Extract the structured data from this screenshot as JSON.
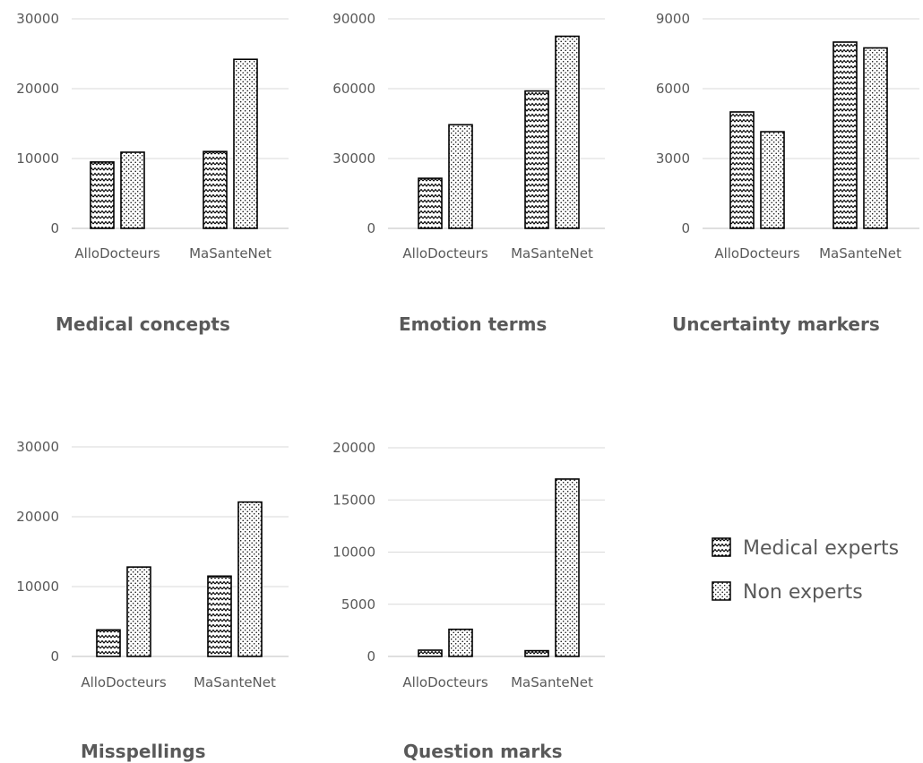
{
  "legend": {
    "position": "right",
    "entries": [
      {
        "label": "Medical experts",
        "pattern": "zigzag"
      },
      {
        "label": "Non experts",
        "pattern": "dots"
      }
    ]
  },
  "colors": {
    "bar_outline": "#000000",
    "text": "#595959",
    "grid": "#d9d9d9",
    "axis": "#bfbfbf"
  },
  "chart_data": [
    {
      "type": "bar",
      "title": "Medical concepts",
      "categories": [
        "AlloDocteurs",
        "MaSanteNet"
      ],
      "series": [
        {
          "name": "Medical experts",
          "values": [
            9500,
            11000
          ]
        },
        {
          "name": "Non experts",
          "values": [
            10900,
            24200
          ]
        }
      ],
      "ylim": [
        0,
        30000
      ],
      "yticks": [
        0,
        10000,
        20000,
        30000
      ],
      "grid": true
    },
    {
      "type": "bar",
      "title": "Emotion terms",
      "categories": [
        "AlloDocteurs",
        "MaSanteNet"
      ],
      "series": [
        {
          "name": "Medical experts",
          "values": [
            21500,
            59000
          ]
        },
        {
          "name": "Non experts",
          "values": [
            44500,
            82500
          ]
        }
      ],
      "ylim": [
        0,
        90000
      ],
      "yticks": [
        0,
        30000,
        60000,
        90000
      ],
      "grid": true
    },
    {
      "type": "bar",
      "title": "Uncertainty markers",
      "categories": [
        "AlloDocteurs",
        "MaSanteNet"
      ],
      "series": [
        {
          "name": "Medical experts",
          "values": [
            5000,
            8000
          ]
        },
        {
          "name": "Non experts",
          "values": [
            4150,
            7750
          ]
        }
      ],
      "ylim": [
        0,
        9000
      ],
      "yticks": [
        0,
        3000,
        6000,
        9000
      ],
      "grid": true
    },
    {
      "type": "bar",
      "title": "Misspellings",
      "categories": [
        "AlloDocteurs",
        "MaSanteNet"
      ],
      "series": [
        {
          "name": "Medical experts",
          "values": [
            3800,
            11500
          ]
        },
        {
          "name": "Non experts",
          "values": [
            12800,
            22100
          ]
        }
      ],
      "ylim": [
        0,
        30000
      ],
      "yticks": [
        0,
        10000,
        20000,
        30000
      ],
      "grid": true
    },
    {
      "type": "bar",
      "title": "Question marks",
      "categories": [
        "AlloDocteurs",
        "MaSanteNet"
      ],
      "series": [
        {
          "name": "Medical experts",
          "values": [
            600,
            550
          ]
        },
        {
          "name": "Non experts",
          "values": [
            2600,
            17000
          ]
        }
      ],
      "ylim": [
        0,
        20000
      ],
      "yticks": [
        0,
        5000,
        10000,
        15000,
        20000
      ],
      "grid": true
    }
  ]
}
